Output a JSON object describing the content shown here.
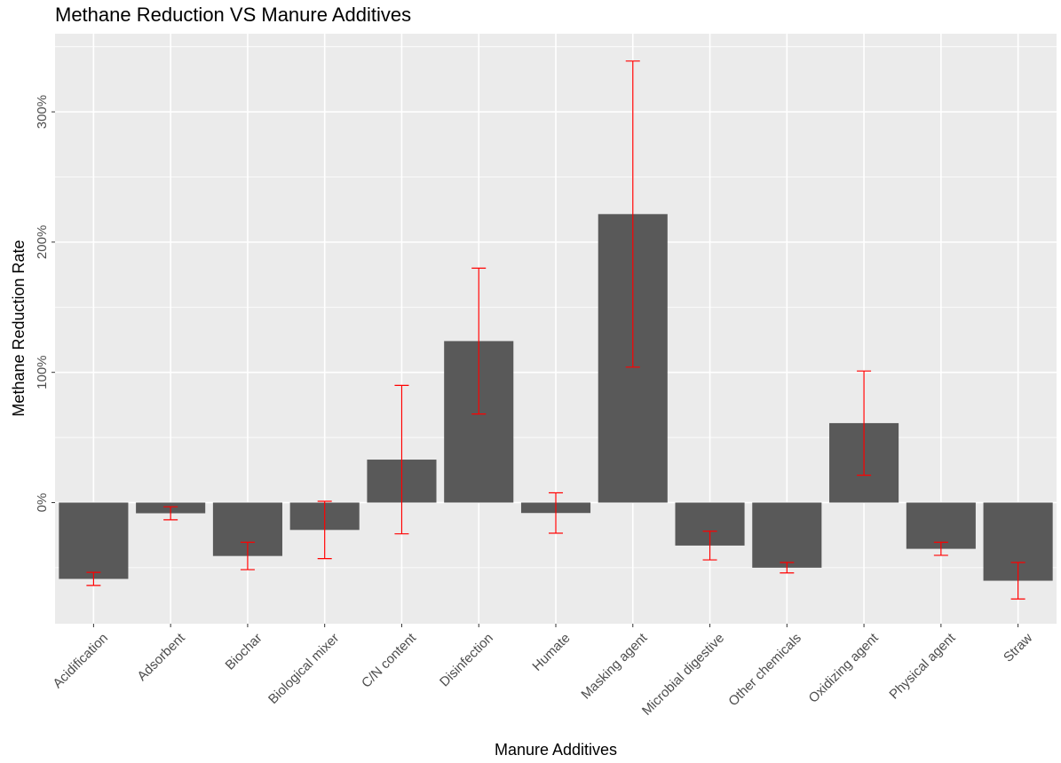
{
  "chart_data": {
    "type": "bar",
    "title": "Methane Reduction VS Manure Additives",
    "x_label": "Manure Additives",
    "y_label": "Methane Reduction Rate",
    "categories": [
      "Acidification",
      "Adsorbent",
      "Biochar",
      "Biological mixer",
      "C/N content",
      "Disinfection",
      "Humate",
      "Masking agent",
      "Microbial digestive",
      "Other chemicals",
      "Oxidizing agent",
      "Physical agent",
      "Straw"
    ],
    "values": [
      -58.6,
      -8.2,
      -41,
      -21,
      33,
      124,
      -8,
      221.5,
      -33,
      -50,
      61,
      -35.5,
      -60
    ],
    "errors": [
      5,
      5,
      10.5,
      22,
      57,
      56,
      15.5,
      117.5,
      11,
      4,
      40,
      5,
      14
    ],
    "color": "#595959",
    "error_color": "#ff0000",
    "ylim": [
      -93,
      360
    ],
    "yticks": [
      {
        "value": 0,
        "label": "0%"
      },
      {
        "value": 100,
        "label": "100%"
      },
      {
        "value": 200,
        "label": "200%"
      },
      {
        "value": 300,
        "label": "300%"
      }
    ],
    "minor_yticks": [
      -50,
      50,
      150,
      250,
      350
    ],
    "grid": true
  }
}
